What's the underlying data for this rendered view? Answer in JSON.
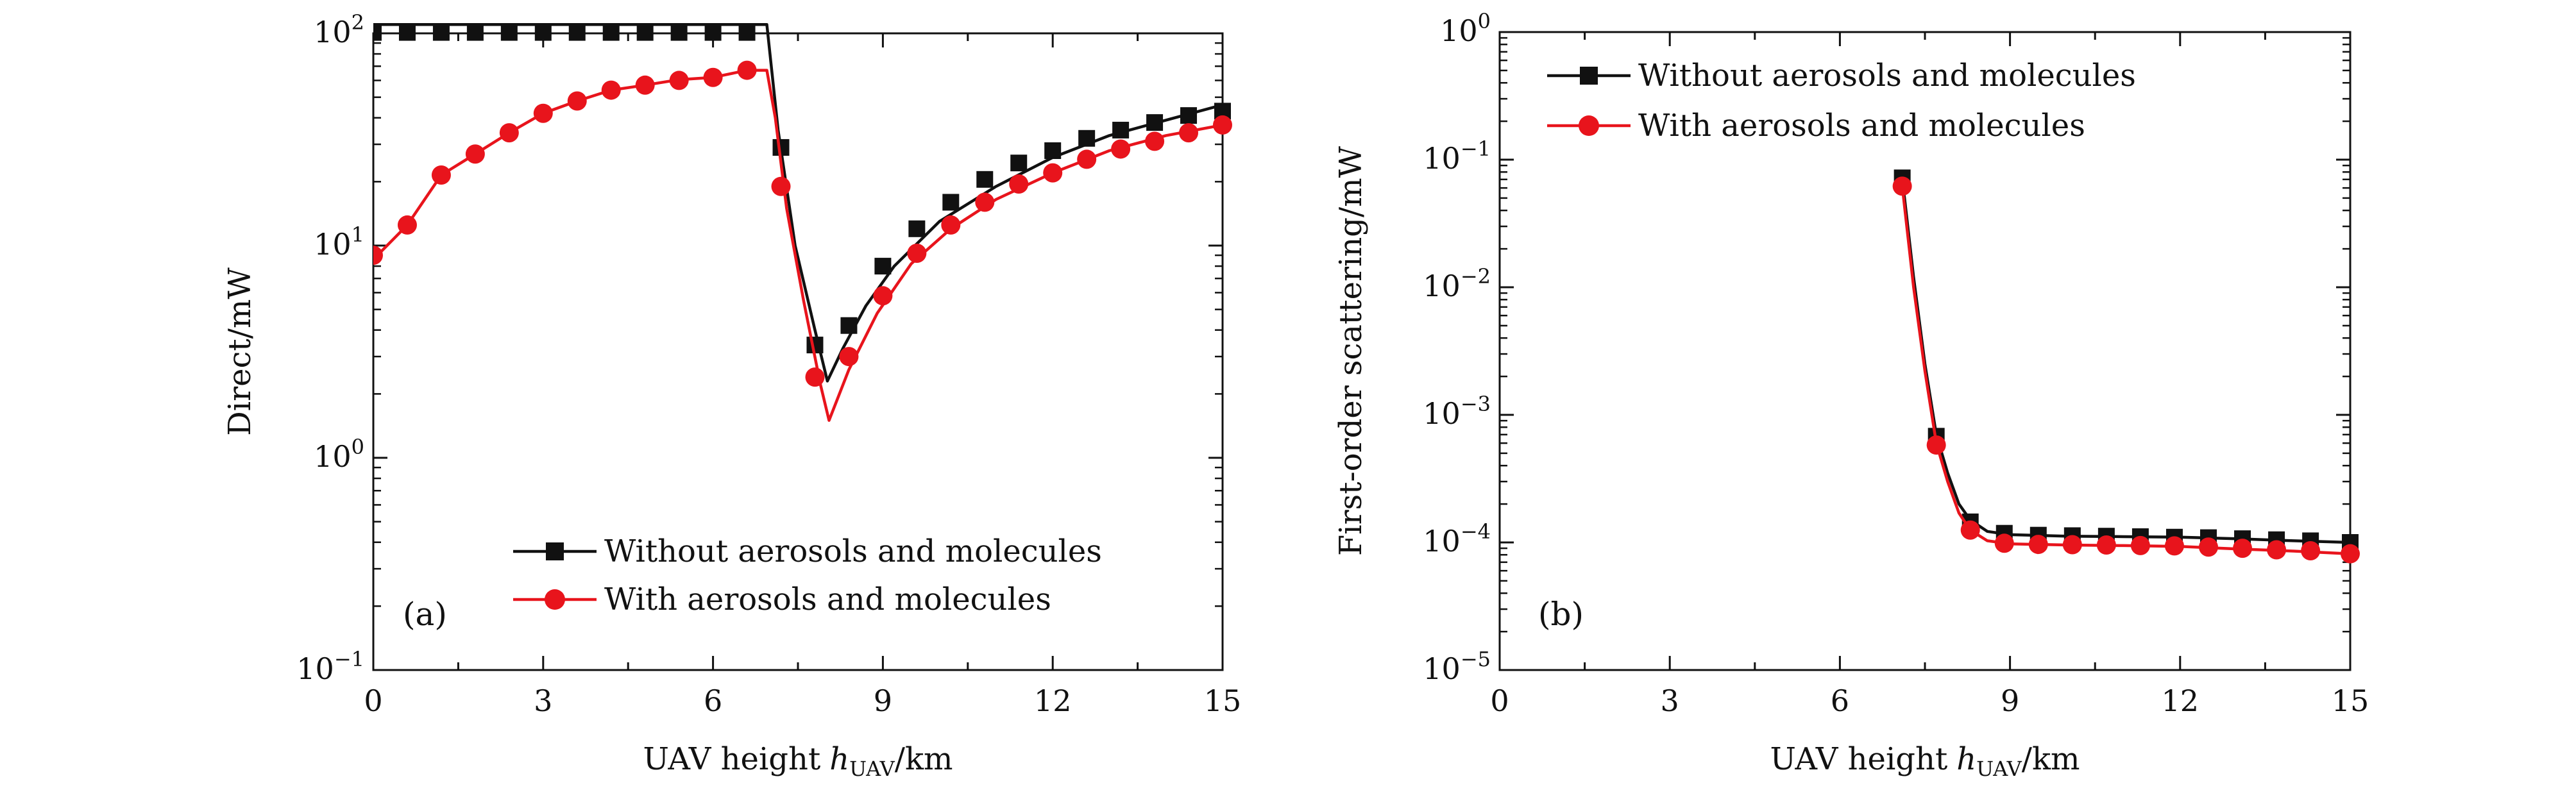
{
  "figure": {
    "colors": {
      "black_series": "#111111",
      "red_series": "#e8141c",
      "axis": "#111111"
    }
  },
  "chart_data": [
    {
      "type": "line",
      "panel_label": "(a)",
      "scale": "log",
      "xlabel": "UAV height",
      "xlabel_math": "h",
      "xlabel_sub": "UAV",
      "xlabel_unit": "/km",
      "ylabel": "Direct/mW",
      "xlim": [
        0,
        15
      ],
      "ylim_exponent": [
        -1,
        2
      ],
      "xticks": [
        0,
        3,
        6,
        9,
        12,
        15
      ],
      "yticks": [
        {
          "base": "10",
          "exp": "−1",
          "pow": -1
        },
        {
          "base": "10",
          "exp": "0",
          "pow": 0
        },
        {
          "base": "10",
          "exp": "1",
          "pow": 1
        },
        {
          "base": "10",
          "exp": "2",
          "pow": 2
        }
      ],
      "legend": {
        "position": "bottom-right"
      },
      "series": [
        {
          "name": "Without aerosols and molecules",
          "color": "#111111",
          "marker": "square",
          "line": [
            [
              0,
              110
            ],
            [
              6.95,
              110
            ],
            [
              7.15,
              35
            ],
            [
              7.45,
              10
            ],
            [
              7.8,
              4
            ],
            [
              8.02,
              2.3
            ],
            [
              8.3,
              3.3
            ],
            [
              8.7,
              5.2
            ],
            [
              9.2,
              8
            ],
            [
              10,
              13
            ],
            [
              11,
              19
            ],
            [
              12,
              26
            ],
            [
              13,
              33
            ],
            [
              14,
              39
            ],
            [
              15,
              46
            ]
          ],
          "points": [
            [
              0,
              101
            ],
            [
              0.6,
              101
            ],
            [
              1.2,
              101
            ],
            [
              1.8,
              101
            ],
            [
              2.4,
              101
            ],
            [
              3.0,
              101
            ],
            [
              3.6,
              101
            ],
            [
              4.2,
              101
            ],
            [
              4.8,
              101
            ],
            [
              5.4,
              101
            ],
            [
              6.0,
              101
            ],
            [
              6.6,
              101
            ],
            [
              7.2,
              29
            ],
            [
              7.8,
              3.4
            ],
            [
              8.4,
              4.2
            ],
            [
              9.0,
              8.0
            ],
            [
              9.6,
              12
            ],
            [
              10.2,
              16
            ],
            [
              10.8,
              20.5
            ],
            [
              11.4,
              24.5
            ],
            [
              12.0,
              28
            ],
            [
              12.6,
              32
            ],
            [
              13.2,
              35
            ],
            [
              13.8,
              38
            ],
            [
              14.4,
              41
            ],
            [
              15.0,
              43
            ]
          ]
        },
        {
          "name": "With aerosols and molecules",
          "color": "#e8141c",
          "marker": "circle",
          "line": [
            [
              0,
              8.6
            ],
            [
              0.6,
              12.5
            ],
            [
              1.2,
              21.5
            ],
            [
              1.8,
              27
            ],
            [
              2.4,
              34
            ],
            [
              3.0,
              42
            ],
            [
              3.6,
              48
            ],
            [
              4.2,
              54
            ],
            [
              4.8,
              57
            ],
            [
              5.4,
              60.5
            ],
            [
              6.0,
              62
            ],
            [
              6.6,
              67
            ],
            [
              6.95,
              67
            ],
            [
              7.1,
              40
            ],
            [
              7.3,
              15
            ],
            [
              7.6,
              5.5
            ],
            [
              7.9,
              2.2
            ],
            [
              8.05,
              1.5
            ],
            [
              8.4,
              2.6
            ],
            [
              8.9,
              4.8
            ],
            [
              9.5,
              8.2
            ],
            [
              10.2,
              12
            ],
            [
              11,
              16.5
            ],
            [
              12,
              22
            ],
            [
              13,
              28
            ],
            [
              14,
              33
            ],
            [
              15,
              37
            ]
          ],
          "points": [
            [
              0,
              9.0
            ],
            [
              0.6,
              12.5
            ],
            [
              1.2,
              21.5
            ],
            [
              1.8,
              27
            ],
            [
              2.4,
              34
            ],
            [
              3.0,
              42
            ],
            [
              3.6,
              48
            ],
            [
              4.2,
              54
            ],
            [
              4.8,
              57
            ],
            [
              5.4,
              60
            ],
            [
              6.0,
              62
            ],
            [
              6.6,
              67
            ],
            [
              7.2,
              19
            ],
            [
              7.8,
              2.4
            ],
            [
              8.4,
              3.0
            ],
            [
              9.0,
              5.8
            ],
            [
              9.6,
              9.2
            ],
            [
              10.2,
              12.5
            ],
            [
              10.8,
              16
            ],
            [
              11.4,
              19.5
            ],
            [
              12.0,
              22
            ],
            [
              12.6,
              25.5
            ],
            [
              13.2,
              28.5
            ],
            [
              13.8,
              31
            ],
            [
              14.4,
              34
            ],
            [
              15.0,
              37
            ]
          ]
        }
      ]
    },
    {
      "type": "line",
      "panel_label": "(b)",
      "scale": "log",
      "xlabel": "UAV height",
      "xlabel_math": "h",
      "xlabel_sub": "UAV",
      "xlabel_unit": "/km",
      "ylabel": "First-order scattering/mW",
      "xlim": [
        0,
        15
      ],
      "ylim_exponent": [
        -5,
        0
      ],
      "xticks": [
        0,
        3,
        6,
        9,
        12,
        15
      ],
      "yticks": [
        {
          "base": "10",
          "exp": "−5",
          "pow": -5
        },
        {
          "base": "10",
          "exp": "−4",
          "pow": -4
        },
        {
          "base": "10",
          "exp": "−3",
          "pow": -3
        },
        {
          "base": "10",
          "exp": "−2",
          "pow": -2
        },
        {
          "base": "10",
          "exp": "−1",
          "pow": -1
        },
        {
          "base": "10",
          "exp": "0",
          "pow": 0
        }
      ],
      "legend": {
        "position": "top-left"
      },
      "series": [
        {
          "name": "Without  aerosols and molecules",
          "color": "#111111",
          "marker": "square",
          "line": [
            [
              7.1,
              0.072
            ],
            [
              7.3,
              0.012
            ],
            [
              7.5,
              0.0025
            ],
            [
              7.7,
              0.0007
            ],
            [
              7.9,
              0.00035
            ],
            [
              8.1,
              0.0002
            ],
            [
              8.3,
              0.00015
            ],
            [
              8.6,
              0.000122
            ],
            [
              9.0,
              0.000115
            ],
            [
              10,
              0.000112
            ],
            [
              11,
              0.000111
            ],
            [
              12,
              0.00011
            ],
            [
              13,
              0.000107
            ],
            [
              14,
              0.000103
            ],
            [
              15,
              0.0001
            ]
          ],
          "points": [
            [
              7.1,
              0.072
            ],
            [
              7.7,
              0.00068
            ],
            [
              8.3,
              0.000145
            ],
            [
              8.9,
              0.000118
            ],
            [
              9.5,
              0.000114
            ],
            [
              10.1,
              0.000113
            ],
            [
              10.7,
              0.000112
            ],
            [
              11.3,
              0.000111
            ],
            [
              11.9,
              0.00011
            ],
            [
              12.5,
              0.000109
            ],
            [
              13.1,
              0.000107
            ],
            [
              13.7,
              0.000105
            ],
            [
              14.3,
              0.000103
            ],
            [
              15.0,
              0.0001
            ]
          ]
        },
        {
          "name": "With  aerosols and molecules",
          "color": "#e8141c",
          "marker": "circle",
          "line": [
            [
              7.1,
              0.062
            ],
            [
              7.3,
              0.01
            ],
            [
              7.5,
              0.0022
            ],
            [
              7.7,
              0.0006
            ],
            [
              7.9,
              0.0003
            ],
            [
              8.1,
              0.00017
            ],
            [
              8.3,
              0.000125
            ],
            [
              8.6,
              0.000103
            ],
            [
              9.0,
              9.75e-05
            ],
            [
              10,
              9.55e-05
            ],
            [
              11,
              9.45e-05
            ],
            [
              12,
              9.3e-05
            ],
            [
              13,
              8.9e-05
            ],
            [
              14,
              8.55e-05
            ],
            [
              15,
              8.15e-05
            ]
          ],
          "points": [
            [
              7.1,
              0.062
            ],
            [
              7.7,
              0.00058
            ],
            [
              8.3,
              0.000125
            ],
            [
              8.9,
              9.85e-05
            ],
            [
              9.5,
              9.65e-05
            ],
            [
              10.1,
              9.6e-05
            ],
            [
              10.7,
              9.55e-05
            ],
            [
              11.3,
              9.45e-05
            ],
            [
              11.9,
              9.4e-05
            ],
            [
              12.5,
              9.2e-05
            ],
            [
              13.1,
              9e-05
            ],
            [
              13.7,
              8.75e-05
            ],
            [
              14.3,
              8.6e-05
            ],
            [
              15.0,
              8.15e-05
            ]
          ]
        }
      ]
    }
  ]
}
